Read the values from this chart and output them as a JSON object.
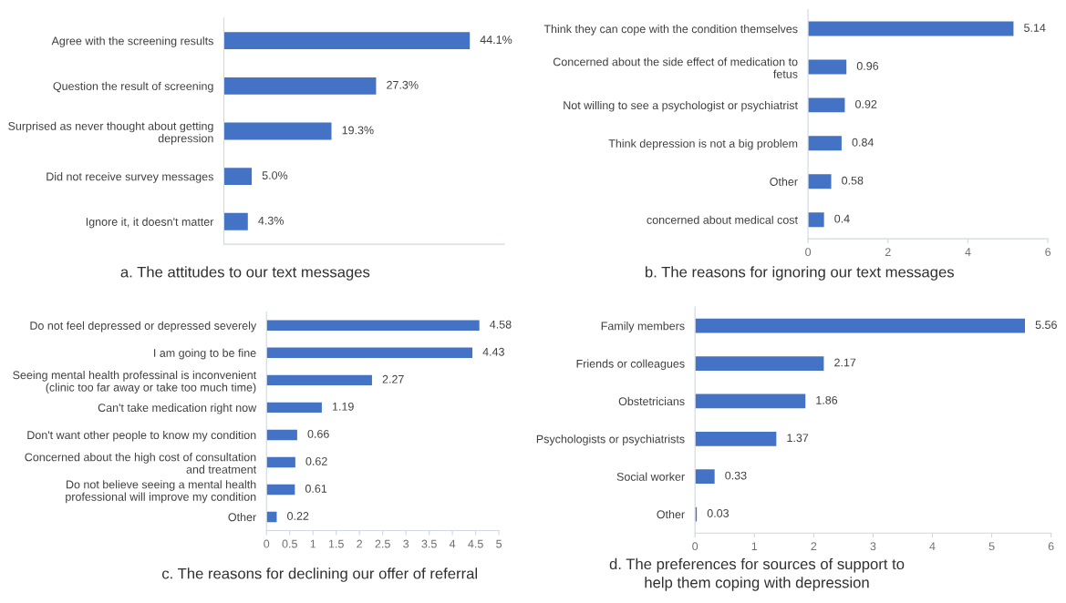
{
  "chart_data": [
    {
      "type": "bar",
      "orientation": "horizontal",
      "title": "a. The attitudes to our text messages",
      "categories": [
        "Agree with the screening results",
        "Question the result of screening",
        "Surprised as never thought about getting\ndepression",
        "Did not receive survey messages",
        "Ignore it, it doesn't matter"
      ],
      "values": [
        44.1,
        27.3,
        19.3,
        5.0,
        4.3
      ],
      "value_labels": [
        "44.1%",
        "27.3%",
        "19.3%",
        "5.0%",
        "4.3%"
      ],
      "color": "#4472c4",
      "tick_labels": "y"
    },
    {
      "type": "bar",
      "orientation": "horizontal",
      "title": "b. The reasons for ignoring our text messages",
      "categories": [
        "Think they can cope with the condition themselves",
        "Concerned about the side effect of medication to\nfetus",
        "Not willing to see a psychologist or psychiatrist",
        "Think depression is not a big problem",
        "Other",
        "concerned about medical cost"
      ],
      "values": [
        5.14,
        0.96,
        0.92,
        0.84,
        0.58,
        0.4
      ],
      "data_labels": true,
      "color": "#4472c4",
      "xlim": [
        0,
        6
      ],
      "xticks": [
        0,
        2,
        4,
        6
      ]
    },
    {
      "type": "bar",
      "orientation": "horizontal",
      "title": "c. The reasons for declining our offer of referral",
      "categories": [
        "Do not feel depressed or depressed severely",
        "I am going to be fine",
        "Seeing mental health professinal is inconvenient\n(clinic too far away or take too much time)",
        "Can't take medication right now",
        "Don't want other people to know my condition",
        "Concerned about the high cost of consultation\nand treatment",
        "Do not believe seeing a mental health\nprofessional will improve my condition",
        "Other"
      ],
      "values": [
        4.58,
        4.43,
        2.27,
        1.19,
        0.66,
        0.62,
        0.61,
        0.22
      ],
      "data_labels": true,
      "color": "#4472c4",
      "xlim": [
        0,
        5
      ],
      "xticks": [
        0,
        0.5,
        1,
        1.5,
        2,
        2.5,
        3,
        3.5,
        4,
        4.5,
        5
      ]
    },
    {
      "type": "bar",
      "orientation": "horizontal",
      "title": "d. The preferences for sources of support to\nhelp them coping with depression",
      "categories": [
        "Family members",
        "Friends or colleagues",
        "Obstetricians",
        "Psychologists or psychiatrists",
        "Social worker",
        "Other"
      ],
      "values": [
        5.56,
        2.17,
        1.86,
        1.37,
        0.33,
        0.03
      ],
      "data_labels": true,
      "color": "#4472c4",
      "xlim": [
        0,
        6
      ],
      "xticks": [
        0,
        1,
        2,
        3,
        4,
        5,
        6
      ]
    }
  ]
}
